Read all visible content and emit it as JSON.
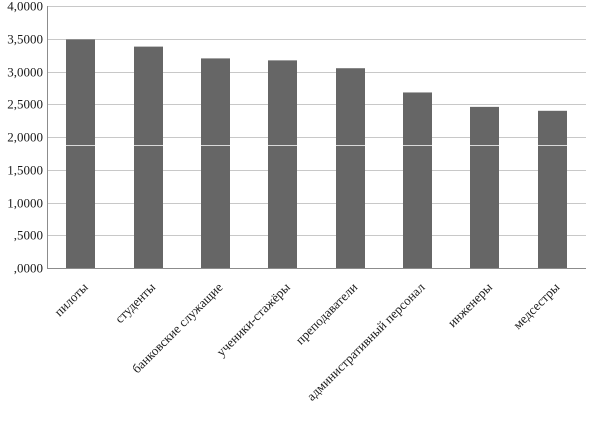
{
  "chart_data": {
    "type": "bar",
    "categories": [
      "пилоты",
      "студенты",
      "банковские служащие",
      "ученики-стажёры",
      "преподаватели",
      "административный персонал",
      "инженеры",
      "медсестры"
    ],
    "values": [
      3.49,
      3.38,
      3.2,
      3.17,
      3.05,
      2.68,
      2.46,
      2.4
    ],
    "ylim": [
      0,
      4
    ],
    "yticks": [
      0,
      0.5,
      1,
      1.5,
      2,
      2.5,
      3,
      3.5,
      4
    ],
    "ytick_labels": [
      ",0000",
      ",5000",
      "1,0000",
      "1,5000",
      "2,0000",
      "2,5000",
      "3,0000",
      "3,5000",
      "4,0000"
    ],
    "bar_color": "#666666",
    "bar_inner_line_value": 1.88,
    "bar_inner_line_color": "#d9d9d9",
    "grid": true,
    "legend": "none"
  }
}
